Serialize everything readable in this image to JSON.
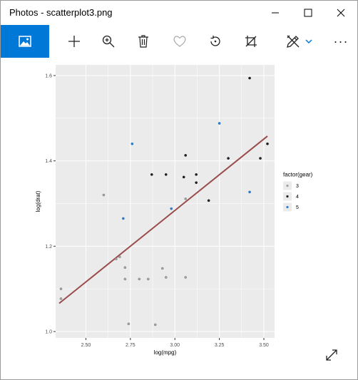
{
  "window": {
    "title": "Photos - scatterplot3.png"
  },
  "toolbar": {
    "items": [
      "view-image",
      "add",
      "zoom",
      "delete",
      "favorite",
      "rotate",
      "crop",
      "edit",
      "more"
    ],
    "more_label": "···"
  },
  "colors": {
    "accent": "#0078d7",
    "plot_panel": "#ebebeb",
    "grid": "#ffffff",
    "gear3": "#a0a0a0",
    "gear4": "#222222",
    "gear5": "#2f7fd0",
    "fit_line": "#9a4b4b"
  },
  "chart_data": {
    "type": "scatter",
    "xlabel": "log(mpg)",
    "ylabel": "log(drat)",
    "xlim": [
      2.33,
      3.56
    ],
    "ylim": [
      0.985,
      1.625
    ],
    "xticks": [
      2.5,
      2.75,
      3.0,
      3.25,
      3.5
    ],
    "xtick_labels": [
      "2.50",
      "2.75",
      "3.00",
      "3.25",
      "3.50"
    ],
    "yticks": [
      1.0,
      1.2,
      1.4,
      1.6
    ],
    "ytick_labels": [
      "1.0",
      "1.2",
      "1.4",
      "1.6"
    ],
    "grid": true,
    "legend": {
      "title": "factor(gear)",
      "placement": "right",
      "entries": [
        "3",
        "4",
        "5"
      ]
    },
    "series": [
      {
        "name": "3",
        "points": [
          [
            2.36,
            1.1
          ],
          [
            2.36,
            1.077
          ],
          [
            2.6,
            1.32
          ],
          [
            2.67,
            1.17
          ],
          [
            2.69,
            1.175
          ],
          [
            2.72,
            1.15
          ],
          [
            2.72,
            1.123
          ],
          [
            2.74,
            1.018
          ],
          [
            2.8,
            1.123
          ],
          [
            2.85,
            1.123
          ],
          [
            2.89,
            1.016
          ],
          [
            2.93,
            1.148
          ],
          [
            2.95,
            1.127
          ],
          [
            3.06,
            1.127
          ],
          [
            3.06,
            1.311
          ]
        ]
      },
      {
        "name": "4",
        "points": [
          [
            2.87,
            1.368
          ],
          [
            2.95,
            1.368
          ],
          [
            3.05,
            1.362
          ],
          [
            3.06,
            1.413
          ],
          [
            3.12,
            1.368
          ],
          [
            3.12,
            1.349
          ],
          [
            3.19,
            1.307
          ],
          [
            3.3,
            1.406
          ],
          [
            3.42,
            1.594
          ],
          [
            3.48,
            1.406
          ],
          [
            3.52,
            1.44
          ]
        ]
      },
      {
        "name": "5",
        "points": [
          [
            2.71,
            1.265
          ],
          [
            2.76,
            1.44
          ],
          [
            2.98,
            1.288
          ],
          [
            3.25,
            1.488
          ],
          [
            3.42,
            1.327
          ]
        ]
      }
    ],
    "fit_line": {
      "x": [
        2.35,
        3.52
      ],
      "y": [
        1.066,
        1.458
      ]
    }
  }
}
